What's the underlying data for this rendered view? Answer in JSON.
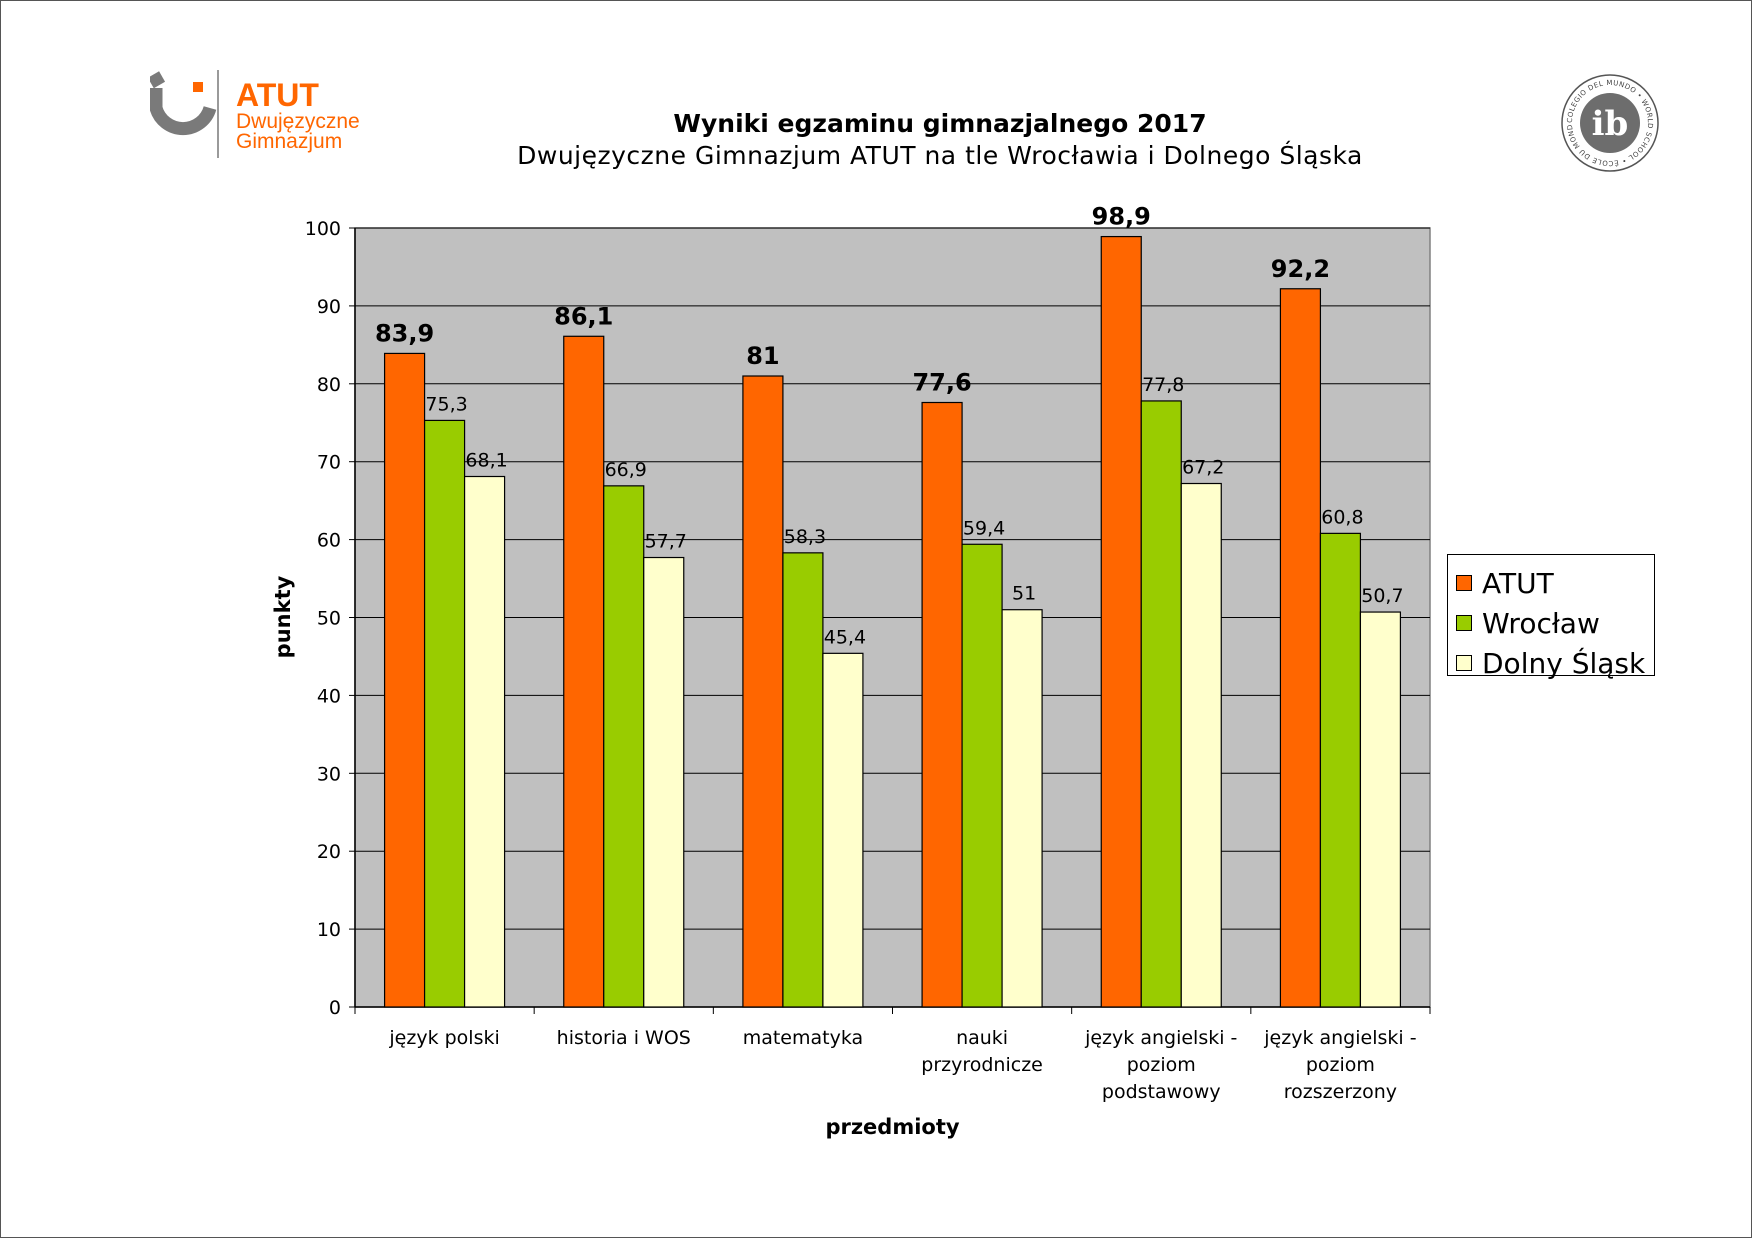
{
  "logo_left": {
    "name": "ATUT",
    "line1": "Dwujęzyczne",
    "line2": "Gimnazjum"
  },
  "logo_right": {
    "mark": "ib",
    "ring_text": "COLEGIO DEL MUNDO • WORLD SCHOOL • ÉCOLE DU MONDE •"
  },
  "chart_data": {
    "type": "bar",
    "title": "Wyniki egzaminu gimnazjalnego 2017",
    "subtitle": "Dwujęzyczne Gimnazjum ATUT na tle Wrocławia i Dolnego Śląska",
    "xlabel": "przedmioty",
    "ylabel": "punkty",
    "ylim": [
      0,
      100
    ],
    "yticks": [
      0,
      10,
      20,
      30,
      40,
      50,
      60,
      70,
      80,
      90,
      100
    ],
    "grid": true,
    "legend_position": "right",
    "categories": [
      [
        "język polski"
      ],
      [
        "historia i WOS"
      ],
      [
        "matematyka"
      ],
      [
        "nauki",
        "przyrodnicze"
      ],
      [
        "język angielski -",
        "poziom",
        "podstawowy"
      ],
      [
        "język angielski -",
        "poziom",
        "rozszerzony"
      ]
    ],
    "series": [
      {
        "name": "ATUT",
        "color": "#ff6600",
        "values": [
          83.9,
          86.1,
          81,
          77.6,
          98.9,
          92.2
        ],
        "labels": [
          "83,9",
          "86,1",
          "81",
          "77,6",
          "98,9",
          "92,2"
        ]
      },
      {
        "name": "Wrocław",
        "color": "#99cc00",
        "values": [
          75.3,
          66.9,
          58.3,
          59.4,
          77.8,
          60.8
        ],
        "labels": [
          "75,3",
          "66,9",
          "58,3",
          "59,4",
          "77,8",
          "60,8"
        ]
      },
      {
        "name": "Dolny Śląsk",
        "color": "#ffffcc",
        "values": [
          68.1,
          57.7,
          45.4,
          51,
          67.2,
          50.7
        ],
        "labels": [
          "68,1",
          "57,7",
          "45,4",
          "51",
          "67,2",
          "50,7"
        ]
      }
    ],
    "plot_background": "#c0c0c0"
  }
}
